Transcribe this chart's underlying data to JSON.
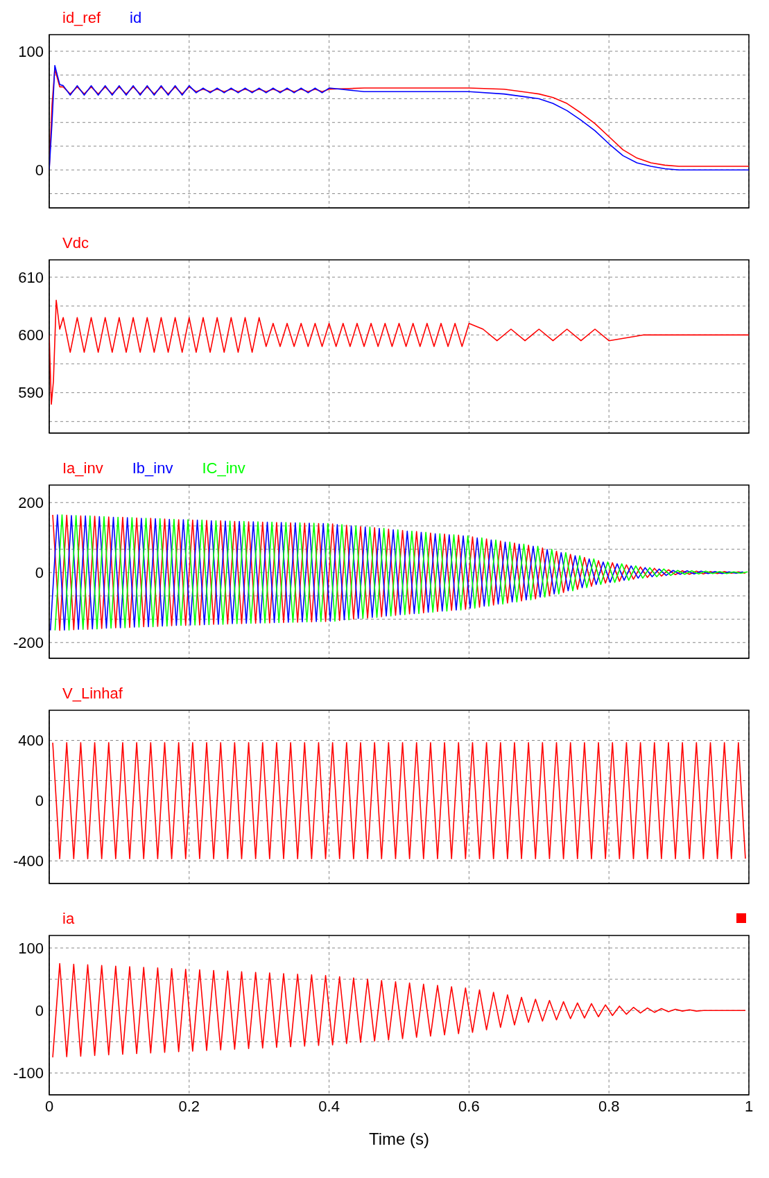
{
  "chart_data": [
    {
      "type": "line",
      "xlim": [
        0,
        1
      ],
      "xticks": [
        0,
        0.2,
        0.4,
        0.6,
        0.8,
        1
      ],
      "ylim": [
        -32,
        114
      ],
      "yticks": [
        {
          "value": -20,
          "label": null
        },
        0,
        {
          "value": 20,
          "label": null
        },
        {
          "value": 40,
          "label": null
        },
        {
          "value": 60,
          "label": null
        },
        {
          "value": 80,
          "label": null
        },
        100
      ],
      "grid": true,
      "legend": "top left",
      "tick_labels": "y",
      "x": [
        0,
        0.004,
        0.008,
        0.015,
        0.02,
        0.03,
        0.04,
        0.05,
        0.06,
        0.07,
        0.08,
        0.09,
        0.1,
        0.11,
        0.12,
        0.13,
        0.14,
        0.15,
        0.16,
        0.17,
        0.18,
        0.19,
        0.2,
        0.21,
        0.22,
        0.23,
        0.24,
        0.25,
        0.26,
        0.27,
        0.28,
        0.29,
        0.3,
        0.31,
        0.32,
        0.33,
        0.34,
        0.35,
        0.36,
        0.37,
        0.38,
        0.39,
        0.4,
        0.45,
        0.5,
        0.55,
        0.6,
        0.65,
        0.7,
        0.72,
        0.74,
        0.76,
        0.78,
        0.8,
        0.82,
        0.84,
        0.86,
        0.88,
        0.9,
        0.95,
        1
      ],
      "series": [
        {
          "name": "id_ref",
          "color": "#ff0000",
          "values": [
            0,
            55,
            85,
            70,
            70,
            64,
            70,
            64,
            70,
            64,
            70,
            64,
            70,
            64,
            70,
            64,
            70,
            64,
            70,
            64,
            70,
            64,
            70,
            66,
            68,
            66,
            68,
            66,
            68,
            66,
            68,
            66,
            68,
            66,
            68,
            66,
            68,
            66,
            68,
            66,
            68,
            66,
            68,
            69,
            69,
            69,
            69,
            68,
            64,
            61,
            56,
            48,
            39,
            28,
            17,
            10,
            6,
            4,
            3,
            3,
            3
          ]
        },
        {
          "name": "id",
          "color": "#0000ff",
          "values": [
            0,
            40,
            88,
            72,
            71,
            63,
            71,
            63,
            71,
            63,
            71,
            63,
            71,
            63,
            71,
            63,
            71,
            63,
            71,
            63,
            71,
            63,
            71,
            65,
            69,
            65,
            69,
            65,
            69,
            65,
            69,
            65,
            69,
            65,
            69,
            65,
            69,
            65,
            69,
            65,
            69,
            65,
            69,
            66,
            66,
            66,
            66,
            64,
            60,
            56,
            50,
            42,
            33,
            22,
            12,
            6,
            3,
            1,
            0,
            0,
            0
          ]
        }
      ]
    },
    {
      "type": "line",
      "xlim": [
        0,
        1
      ],
      "xticks": [
        0,
        0.2,
        0.4,
        0.6,
        0.8,
        1
      ],
      "ylim": [
        583,
        613
      ],
      "yticks": [
        {
          "value": 585,
          "label": null
        },
        590,
        {
          "value": 595,
          "label": null
        },
        600,
        {
          "value": 605,
          "label": null
        },
        610
      ],
      "grid": true,
      "legend": "top left",
      "tick_labels": "y",
      "x": [
        0,
        0.003,
        0.006,
        0.01,
        0.015,
        0.02,
        0.03,
        0.04,
        0.05,
        0.06,
        0.07,
        0.08,
        0.09,
        0.1,
        0.11,
        0.12,
        0.13,
        0.14,
        0.15,
        0.16,
        0.17,
        0.18,
        0.19,
        0.2,
        0.21,
        0.22,
        0.23,
        0.24,
        0.25,
        0.26,
        0.27,
        0.28,
        0.29,
        0.3,
        0.31,
        0.32,
        0.33,
        0.34,
        0.35,
        0.36,
        0.37,
        0.38,
        0.39,
        0.4,
        0.41,
        0.42,
        0.43,
        0.44,
        0.45,
        0.46,
        0.47,
        0.48,
        0.49,
        0.5,
        0.51,
        0.52,
        0.53,
        0.54,
        0.55,
        0.56,
        0.57,
        0.58,
        0.59,
        0.6,
        0.62,
        0.64,
        0.66,
        0.68,
        0.7,
        0.72,
        0.74,
        0.76,
        0.78,
        0.8,
        0.85,
        0.9,
        0.95,
        1
      ],
      "series": [
        {
          "name": "Vdc",
          "color": "#ff0000",
          "values": [
            600,
            588,
            592,
            606,
            601,
            603,
            597,
            603,
            597,
            603,
            597,
            603,
            597,
            603,
            597,
            603,
            597,
            603,
            597,
            603,
            597,
            603,
            597,
            603,
            597,
            603,
            597,
            603,
            597,
            603,
            597,
            603,
            597,
            603,
            598,
            602,
            598,
            602,
            598,
            602,
            598,
            602,
            598,
            602,
            598,
            602,
            598,
            602,
            598,
            602,
            598,
            602,
            598,
            602,
            598,
            602,
            598,
            602,
            598,
            602,
            598,
            602,
            598,
            602,
            601,
            599,
            601,
            599,
            601,
            599,
            601,
            599,
            601,
            599,
            600,
            600,
            600,
            600
          ]
        }
      ]
    },
    {
      "type": "line",
      "xlim": [
        0,
        1
      ],
      "xticks": [
        0,
        0.2,
        0.4,
        0.6,
        0.8,
        1
      ],
      "ylim": [
        -245,
        250
      ],
      "yticks": [
        -200,
        {
          "value": -133.3,
          "label": null
        },
        {
          "value": -66.7,
          "label": null
        },
        0,
        {
          "value": 66.7,
          "label": null
        },
        {
          "value": 133.3,
          "label": null
        },
        200
      ],
      "grid": true,
      "legend": "top left",
      "tick_labels": "y",
      "x": [
        0.005,
        0.015,
        0.025,
        0.035,
        0.045,
        0.055,
        0.065,
        0.075,
        0.085,
        0.095,
        0.105,
        0.115,
        0.125,
        0.135,
        0.145,
        0.155,
        0.165,
        0.175,
        0.185,
        0.195,
        0.205,
        0.215,
        0.225,
        0.235,
        0.245,
        0.255,
        0.265,
        0.275,
        0.285,
        0.295,
        0.305,
        0.315,
        0.325,
        0.335,
        0.345,
        0.355,
        0.365,
        0.375,
        0.385,
        0.395,
        0.405,
        0.415,
        0.425,
        0.435,
        0.445,
        0.455,
        0.465,
        0.475,
        0.485,
        0.495,
        0.505,
        0.515,
        0.525,
        0.535,
        0.545,
        0.555,
        0.565,
        0.575,
        0.585,
        0.595,
        0.605,
        0.615,
        0.625,
        0.635,
        0.645,
        0.655,
        0.665,
        0.675,
        0.685,
        0.695,
        0.705,
        0.715,
        0.725,
        0.735,
        0.745,
        0.755,
        0.765,
        0.775,
        0.785,
        0.795,
        0.805,
        0.815,
        0.825,
        0.835,
        0.845,
        0.855,
        0.865,
        0.875,
        0.885,
        0.895,
        0.905,
        0.915,
        0.925,
        0.935,
        0.945,
        0.955,
        0.965,
        0.975,
        0.985,
        0.995
      ],
      "series": [
        {
          "name": "Ia_inv",
          "color": "#ff0000",
          "values": [
            165,
            -165,
            164,
            -163,
            162,
            -162,
            161,
            -160,
            159,
            -158,
            158,
            -157,
            156,
            -155,
            155,
            -154,
            153,
            -152,
            151,
            -151,
            150,
            -150,
            149,
            -148,
            148,
            -147,
            146,
            -146,
            145,
            -145,
            144,
            -144,
            143,
            -143,
            142,
            -142,
            141,
            -141,
            140,
            -140,
            139,
            -137,
            135,
            -133,
            131,
            -130,
            128,
            -126,
            124,
            -122,
            120,
            -118,
            117,
            -115,
            113,
            -111,
            110,
            -108,
            107,
            -105,
            102,
            -99,
            96,
            -93,
            90,
            -87,
            84,
            -81,
            78,
            -75,
            70,
            -66,
            61,
            -57,
            52,
            -48,
            43,
            -39,
            34,
            -30,
            28,
            -25,
            22,
            -19,
            16,
            -14,
            12,
            -10,
            8,
            -6,
            5,
            -5,
            4,
            -4,
            3,
            -3,
            3,
            -2,
            2,
            -2
          ]
        },
        {
          "name": "Ib_inv",
          "color": "#0000ff",
          "x": [
            0.0017,
            0.0117,
            0.0217,
            0.0317,
            0.0417,
            0.0517,
            0.0617,
            0.0717,
            0.0817,
            0.0917,
            0.1017,
            0.1117,
            0.1217,
            0.1317,
            0.1417,
            0.1517,
            0.1617,
            0.1717,
            0.1817,
            0.1917,
            0.2017,
            0.2117,
            0.2217,
            0.2317,
            0.2417,
            0.2517,
            0.2617,
            0.2717,
            0.2817,
            0.2917,
            0.3017,
            0.3117,
            0.3217,
            0.3317,
            0.3417,
            0.3517,
            0.3617,
            0.3717,
            0.3817,
            0.3917,
            0.4017,
            0.4117,
            0.4217,
            0.4317,
            0.4417,
            0.4517,
            0.4617,
            0.4717,
            0.4817,
            0.4917,
            0.5017,
            0.5117,
            0.5217,
            0.5317,
            0.5417,
            0.5517,
            0.5617,
            0.5717,
            0.5817,
            0.5917,
            0.6017,
            0.6117,
            0.6217,
            0.6317,
            0.6417,
            0.6517,
            0.6617,
            0.6717,
            0.6817,
            0.6917,
            0.7017,
            0.7117,
            0.7217,
            0.7317,
            0.7417,
            0.7517,
            0.7617,
            0.7717,
            0.7817,
            0.7917,
            0.8017,
            0.8117,
            0.8217,
            0.8317,
            0.8417,
            0.8517,
            0.8617,
            0.8717,
            0.8817,
            0.8917,
            0.9017,
            0.9117,
            0.9217,
            0.9317,
            0.9417,
            0.9517,
            0.9617,
            0.9717,
            0.9817,
            0.9917
          ],
          "values": [
            -165,
            165,
            -164,
            163,
            -162,
            162,
            -161,
            160,
            -159,
            158,
            -158,
            157,
            -156,
            155,
            -155,
            154,
            -153,
            152,
            -151,
            151,
            -150,
            150,
            -149,
            148,
            -148,
            147,
            -146,
            146,
            -145,
            145,
            -144,
            144,
            -143,
            143,
            -142,
            142,
            -141,
            141,
            -140,
            140,
            -139,
            137,
            -135,
            133,
            -131,
            130,
            -128,
            126,
            -124,
            122,
            -120,
            118,
            -117,
            115,
            -113,
            111,
            -110,
            108,
            -107,
            105,
            -102,
            99,
            -96,
            93,
            -90,
            87,
            -84,
            81,
            -78,
            75,
            -70,
            66,
            -61,
            57,
            -52,
            48,
            -43,
            39,
            -34,
            30,
            -28,
            25,
            -22,
            19,
            -16,
            14,
            -12,
            10,
            -8,
            6,
            -5,
            5,
            -4,
            4,
            -3,
            3,
            -3,
            2,
            -2,
            2
          ]
        },
        {
          "name": "IC_inv",
          "color": "#00ff00",
          "x": [
            0.0083,
            0.0183,
            0.0283,
            0.0383,
            0.0483,
            0.0583,
            0.0683,
            0.0783,
            0.0883,
            0.0983,
            0.1083,
            0.1183,
            0.1283,
            0.1383,
            0.1483,
            0.1583,
            0.1683,
            0.1783,
            0.1883,
            0.1983,
            0.2083,
            0.2183,
            0.2283,
            0.2383,
            0.2483,
            0.2583,
            0.2683,
            0.2783,
            0.2883,
            0.2983,
            0.3083,
            0.3183,
            0.3283,
            0.3383,
            0.3483,
            0.3583,
            0.3683,
            0.3783,
            0.3883,
            0.3983,
            0.4083,
            0.4183,
            0.4283,
            0.4383,
            0.4483,
            0.4583,
            0.4683,
            0.4783,
            0.4883,
            0.4983,
            0.5083,
            0.5183,
            0.5283,
            0.5383,
            0.5483,
            0.5583,
            0.5683,
            0.5783,
            0.5883,
            0.5983,
            0.6083,
            0.6183,
            0.6283,
            0.6383,
            0.6483,
            0.6583,
            0.6683,
            0.6783,
            0.6883,
            0.6983,
            0.7083,
            0.7183,
            0.7283,
            0.7383,
            0.7483,
            0.7583,
            0.7683,
            0.7783,
            0.7883,
            0.7983,
            0.8083,
            0.8183,
            0.8283,
            0.8383,
            0.8483,
            0.8583,
            0.8683,
            0.8783,
            0.8883,
            0.8983,
            0.9083,
            0.9183,
            0.9283,
            0.9383,
            0.9483,
            0.9583,
            0.9683,
            0.9783,
            0.9883,
            0.9983
          ],
          "values": [
            -165,
            165,
            -164,
            163,
            -162,
            162,
            -161,
            160,
            -159,
            158,
            -158,
            157,
            -156,
            155,
            -155,
            154,
            -153,
            152,
            -151,
            151,
            -150,
            150,
            -149,
            148,
            -148,
            147,
            -146,
            146,
            -145,
            145,
            -144,
            144,
            -143,
            143,
            -142,
            142,
            -141,
            141,
            -140,
            140,
            -139,
            137,
            -135,
            133,
            -131,
            130,
            -128,
            126,
            -124,
            122,
            -120,
            118,
            -117,
            115,
            -113,
            111,
            -110,
            108,
            -107,
            105,
            -102,
            99,
            -96,
            93,
            -90,
            87,
            -84,
            81,
            -78,
            75,
            -70,
            66,
            -61,
            57,
            -52,
            48,
            -43,
            39,
            -34,
            30,
            -28,
            25,
            -22,
            19,
            -16,
            14,
            -12,
            10,
            -8,
            6,
            -5,
            5,
            -4,
            4,
            -3,
            3,
            -3,
            2,
            -2,
            2
          ]
        }
      ]
    },
    {
      "type": "line",
      "xlim": [
        0,
        1
      ],
      "xticks": [
        0,
        0.2,
        0.4,
        0.6,
        0.8,
        1
      ],
      "ylim": [
        -550,
        600
      ],
      "yticks": [
        -400,
        {
          "value": -266.7,
          "label": null
        },
        {
          "value": -133.3,
          "label": null
        },
        0,
        {
          "value": 133.3,
          "label": null
        },
        {
          "value": 266.7,
          "label": null
        },
        400
      ],
      "grid": true,
      "legend": "top left",
      "tick_labels": "y",
      "x": [
        0.005,
        0.015,
        0.025,
        0.035,
        0.045,
        0.055,
        0.065,
        0.075,
        0.085,
        0.095,
        0.105,
        0.115,
        0.125,
        0.135,
        0.145,
        0.155,
        0.165,
        0.175,
        0.185,
        0.195,
        0.205,
        0.215,
        0.225,
        0.235,
        0.245,
        0.255,
        0.265,
        0.275,
        0.285,
        0.295,
        0.305,
        0.315,
        0.325,
        0.335,
        0.345,
        0.355,
        0.365,
        0.375,
        0.385,
        0.395,
        0.405,
        0.415,
        0.425,
        0.435,
        0.445,
        0.455,
        0.465,
        0.475,
        0.485,
        0.495,
        0.505,
        0.515,
        0.525,
        0.535,
        0.545,
        0.555,
        0.565,
        0.575,
        0.585,
        0.595,
        0.605,
        0.615,
        0.625,
        0.635,
        0.645,
        0.655,
        0.665,
        0.675,
        0.685,
        0.695,
        0.705,
        0.715,
        0.725,
        0.735,
        0.745,
        0.755,
        0.765,
        0.775,
        0.785,
        0.795,
        0.805,
        0.815,
        0.825,
        0.835,
        0.845,
        0.855,
        0.865,
        0.875,
        0.885,
        0.895,
        0.905,
        0.915,
        0.925,
        0.935,
        0.945,
        0.955,
        0.965,
        0.975,
        0.985,
        0.995
      ],
      "series": [
        {
          "name": "V_Linhaf",
          "color": "#ff0000",
          "values": [
            385,
            -385,
            385,
            -385,
            385,
            -385,
            385,
            -385,
            385,
            -385,
            385,
            -385,
            385,
            -385,
            385,
            -385,
            385,
            -385,
            385,
            -385,
            385,
            -385,
            385,
            -385,
            385,
            -385,
            385,
            -385,
            385,
            -385,
            385,
            -385,
            385,
            -385,
            385,
            -385,
            385,
            -385,
            385,
            -385,
            385,
            -385,
            385,
            -385,
            385,
            -385,
            385,
            -385,
            385,
            -385,
            385,
            -385,
            385,
            -385,
            385,
            -385,
            385,
            -385,
            385,
            -385,
            385,
            -385,
            385,
            -385,
            385,
            -385,
            385,
            -385,
            385,
            -385,
            385,
            -385,
            385,
            -385,
            385,
            -385,
            385,
            -385,
            385,
            -385,
            385,
            -385,
            385,
            -385,
            385,
            -385,
            385,
            -385,
            385,
            -385,
            385,
            -385,
            385,
            -385,
            385,
            -385,
            385,
            -385,
            385,
            -385
          ]
        }
      ]
    },
    {
      "type": "line",
      "xlim": [
        0,
        1
      ],
      "xticks": [
        0,
        0.2,
        0.4,
        0.6,
        0.8,
        1
      ],
      "ylim": [
        -135,
        120
      ],
      "yticks": [
        -100,
        {
          "value": -50,
          "label": null
        },
        0,
        {
          "value": 50,
          "label": null
        },
        100
      ],
      "grid": true,
      "legend": "top left",
      "xlabel": "Time (s)",
      "x": [
        0.005,
        0.015,
        0.025,
        0.035,
        0.045,
        0.055,
        0.065,
        0.075,
        0.085,
        0.095,
        0.105,
        0.115,
        0.125,
        0.135,
        0.145,
        0.155,
        0.165,
        0.175,
        0.185,
        0.195,
        0.205,
        0.215,
        0.225,
        0.235,
        0.245,
        0.255,
        0.265,
        0.275,
        0.285,
        0.295,
        0.305,
        0.315,
        0.325,
        0.335,
        0.345,
        0.355,
        0.365,
        0.375,
        0.385,
        0.395,
        0.405,
        0.415,
        0.425,
        0.435,
        0.445,
        0.455,
        0.465,
        0.475,
        0.485,
        0.495,
        0.505,
        0.515,
        0.525,
        0.535,
        0.545,
        0.555,
        0.565,
        0.575,
        0.585,
        0.595,
        0.605,
        0.615,
        0.625,
        0.635,
        0.645,
        0.655,
        0.665,
        0.675,
        0.685,
        0.695,
        0.705,
        0.715,
        0.725,
        0.735,
        0.745,
        0.755,
        0.765,
        0.775,
        0.785,
        0.795,
        0.805,
        0.815,
        0.825,
        0.835,
        0.845,
        0.855,
        0.865,
        0.875,
        0.885,
        0.895,
        0.905,
        0.915,
        0.925,
        0.935,
        0.945,
        0.955,
        0.965,
        0.975,
        0.985,
        0.995
      ],
      "series": [
        {
          "name": "ia",
          "color": "#ff0000",
          "values": [
            -75,
            75,
            -74,
            74,
            -73,
            73,
            -72,
            72,
            -71,
            71,
            -70,
            70,
            -69,
            69,
            -68,
            68,
            -67,
            67,
            -66,
            66,
            -65,
            65,
            -64,
            64,
            -63,
            63,
            -62,
            62,
            -61,
            61,
            -60,
            60,
            -59,
            59,
            -58,
            58,
            -57,
            57,
            -56,
            56,
            -55,
            54,
            -53,
            52,
            -51,
            50,
            -49,
            48,
            -47,
            46,
            -45,
            44,
            -43,
            42,
            -41,
            40,
            -39,
            38,
            -37,
            36,
            -35,
            33,
            -31,
            29,
            -27,
            25,
            -23,
            21,
            -19,
            18,
            -17,
            16,
            -15,
            14,
            -13,
            12,
            -12,
            11,
            -10,
            9,
            -8,
            7,
            -6,
            5,
            -4,
            4,
            -3,
            3,
            -2,
            2,
            -1,
            1,
            -1,
            0,
            0,
            0,
            0,
            0,
            0,
            0
          ]
        }
      ]
    }
  ]
}
